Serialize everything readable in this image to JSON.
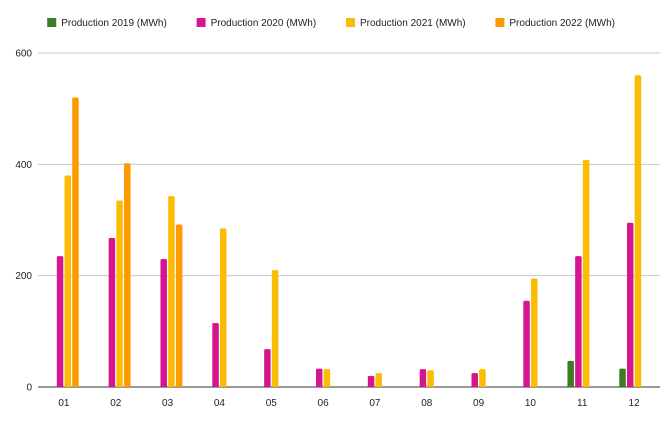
{
  "chart_data": {
    "type": "bar",
    "title": "",
    "xlabel": "",
    "ylabel": "",
    "categories": [
      "01",
      "02",
      "03",
      "04",
      "05",
      "06",
      "07",
      "08",
      "09",
      "10",
      "11",
      "12"
    ],
    "ylim": [
      0,
      600
    ],
    "yticks": [
      0,
      200,
      400,
      600
    ],
    "grid": true,
    "legend_position": "top",
    "series": [
      {
        "name": "Production 2019 (MWh)",
        "color": "#3a7d22",
        "values": [
          null,
          null,
          null,
          null,
          null,
          null,
          null,
          null,
          null,
          null,
          47,
          33
        ]
      },
      {
        "name": "Production 2020 (MWh)",
        "color": "#d5168e",
        "values": [
          235,
          268,
          230,
          115,
          68,
          33,
          20,
          32,
          25,
          155,
          235,
          295
        ]
      },
      {
        "name": "Production 2021 (MWh)",
        "color": "#fbbc04",
        "values": [
          380,
          335,
          343,
          285,
          210,
          32,
          25,
          30,
          32,
          195,
          408,
          560
        ]
      },
      {
        "name": "Production 2022 (MWh)",
        "color": "#ff9900",
        "values": [
          520,
          402,
          292,
          null,
          null,
          null,
          null,
          null,
          null,
          null,
          null,
          null
        ]
      }
    ]
  }
}
